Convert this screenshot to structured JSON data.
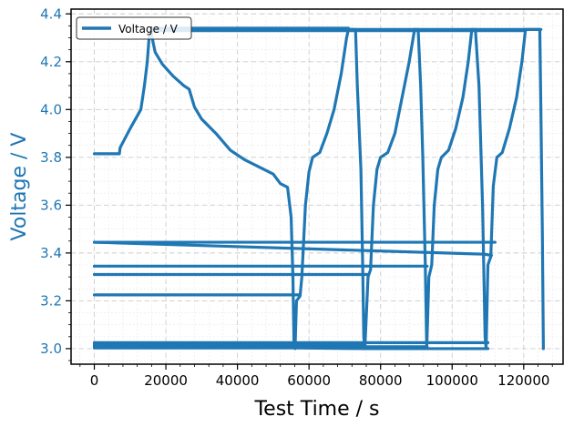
{
  "chart_data": {
    "type": "line",
    "xlabel": "Test Time / s",
    "ylabel": "Voltage / V",
    "xlim": [
      -6500,
      131000
    ],
    "ylim": [
      2.935,
      4.42
    ],
    "xticks": [
      0,
      20000,
      40000,
      60000,
      80000,
      100000,
      120000
    ],
    "xtick_labels": [
      "0",
      "20000",
      "40000",
      "60000",
      "80000",
      "100000",
      "120000"
    ],
    "yticks": [
      3.0,
      3.2,
      3.4,
      3.6,
      3.8,
      4.0,
      4.2,
      4.4
    ],
    "ytick_labels": [
      "3.0",
      "3.2",
      "3.4",
      "3.6",
      "3.8",
      "4.0",
      "4.2",
      "4.4"
    ],
    "grid": true,
    "legend_position": "top-left",
    "colors": {
      "series": "#1f77b4",
      "ylabel": "#1f77b4"
    },
    "series": [
      {
        "name": "Voltage / V",
        "points": [
          [
            0,
            3.815
          ],
          [
            7000,
            3.815
          ],
          [
            7200,
            3.84
          ],
          [
            10000,
            3.92
          ],
          [
            13000,
            4.0
          ],
          [
            14000,
            4.1
          ],
          [
            14800,
            4.2
          ],
          [
            15300,
            4.3
          ],
          [
            15700,
            4.335
          ],
          [
            16300,
            4.29
          ],
          [
            17000,
            4.24
          ],
          [
            19000,
            4.19
          ],
          [
            22000,
            4.14
          ],
          [
            25000,
            4.1
          ],
          [
            26500,
            4.085
          ],
          [
            28000,
            4.01
          ],
          [
            30000,
            3.96
          ],
          [
            34000,
            3.9
          ],
          [
            38000,
            3.83
          ],
          [
            42000,
            3.79
          ],
          [
            46000,
            3.76
          ],
          [
            50000,
            3.73
          ],
          [
            52000,
            3.69
          ],
          [
            54000,
            3.675
          ],
          [
            55000,
            3.55
          ],
          [
            55500,
            3.3
          ],
          [
            55800,
            3.02
          ],
          [
            56100,
            3.0
          ],
          [
            56500,
            3.2
          ],
          [
            57500,
            3.22
          ],
          [
            58000,
            3.3
          ],
          [
            59000,
            3.6
          ],
          [
            60000,
            3.74
          ],
          [
            61000,
            3.8
          ],
          [
            63000,
            3.82
          ],
          [
            65000,
            3.9
          ],
          [
            67000,
            4.0
          ],
          [
            69000,
            4.15
          ],
          [
            70500,
            4.3
          ],
          [
            71000,
            4.335
          ],
          [
            72000,
            4.335
          ],
          [
            73000,
            4.335
          ],
          [
            73500,
            4.1
          ],
          [
            74500,
            3.75
          ],
          [
            75000,
            3.35
          ],
          [
            75300,
            3.05
          ],
          [
            75600,
            3.0
          ],
          [
            76500,
            3.3
          ],
          [
            77200,
            3.33
          ],
          [
            78000,
            3.6
          ],
          [
            79000,
            3.75
          ],
          [
            80000,
            3.8
          ],
          [
            82000,
            3.82
          ],
          [
            84000,
            3.9
          ],
          [
            86000,
            4.05
          ],
          [
            88000,
            4.2
          ],
          [
            89500,
            4.335
          ],
          [
            90500,
            4.335
          ],
          [
            91200,
            4.1
          ],
          [
            91800,
            3.8
          ],
          [
            92500,
            3.35
          ],
          [
            92900,
            3.0
          ],
          [
            93500,
            3.3
          ],
          [
            94300,
            3.35
          ],
          [
            95000,
            3.6
          ],
          [
            96000,
            3.75
          ],
          [
            97000,
            3.8
          ],
          [
            99000,
            3.83
          ],
          [
            101000,
            3.92
          ],
          [
            103000,
            4.05
          ],
          [
            104500,
            4.2
          ],
          [
            105500,
            4.335
          ],
          [
            106500,
            4.335
          ],
          [
            107500,
            4.1
          ],
          [
            108500,
            3.6
          ],
          [
            109200,
            3.05
          ],
          [
            109500,
            3.0
          ],
          [
            110000,
            3.35
          ],
          [
            110800,
            3.385
          ],
          [
            111500,
            3.68
          ],
          [
            112500,
            3.8
          ],
          [
            114000,
            3.82
          ],
          [
            116000,
            3.92
          ],
          [
            118000,
            4.05
          ],
          [
            119500,
            4.2
          ],
          [
            120500,
            4.335
          ],
          [
            124500,
            4.335
          ],
          [
            124800,
            4.0
          ],
          [
            125200,
            3.5
          ],
          [
            125500,
            3.0
          ]
        ]
      }
    ],
    "extra_segments": [
      [
        [
          0,
          3.445
        ],
        [
          112000,
          3.445
        ]
      ],
      [
        [
          0,
          3.445
        ],
        [
          109000,
          3.395
        ],
        [
          111000,
          3.39
        ]
      ],
      [
        [
          0,
          3.345
        ],
        [
          93000,
          3.345
        ]
      ],
      [
        [
          0,
          3.31
        ],
        [
          76500,
          3.31
        ]
      ],
      [
        [
          0,
          3.225
        ],
        [
          57500,
          3.225
        ]
      ],
      [
        [
          0,
          3.025
        ],
        [
          110000,
          3.025
        ]
      ],
      [
        [
          0,
          3.02
        ],
        [
          56000,
          3.02
        ]
      ],
      [
        [
          0,
          3.015
        ],
        [
          75500,
          3.015
        ]
      ],
      [
        [
          0,
          3.008
        ],
        [
          93000,
          3.008
        ]
      ],
      [
        [
          0,
          3.003
        ],
        [
          56000,
          3.003
        ]
      ],
      [
        [
          56000,
          3.003
        ],
        [
          76000,
          3.0
        ]
      ],
      [
        [
          76000,
          3.0
        ],
        [
          110000,
          3.0
        ]
      ],
      [
        [
          15700,
          4.335
        ],
        [
          124800,
          4.335
        ]
      ],
      [
        [
          16500,
          4.33
        ],
        [
          120500,
          4.33
        ]
      ],
      [
        [
          16500,
          4.34
        ],
        [
          71000,
          4.34
        ]
      ]
    ]
  }
}
